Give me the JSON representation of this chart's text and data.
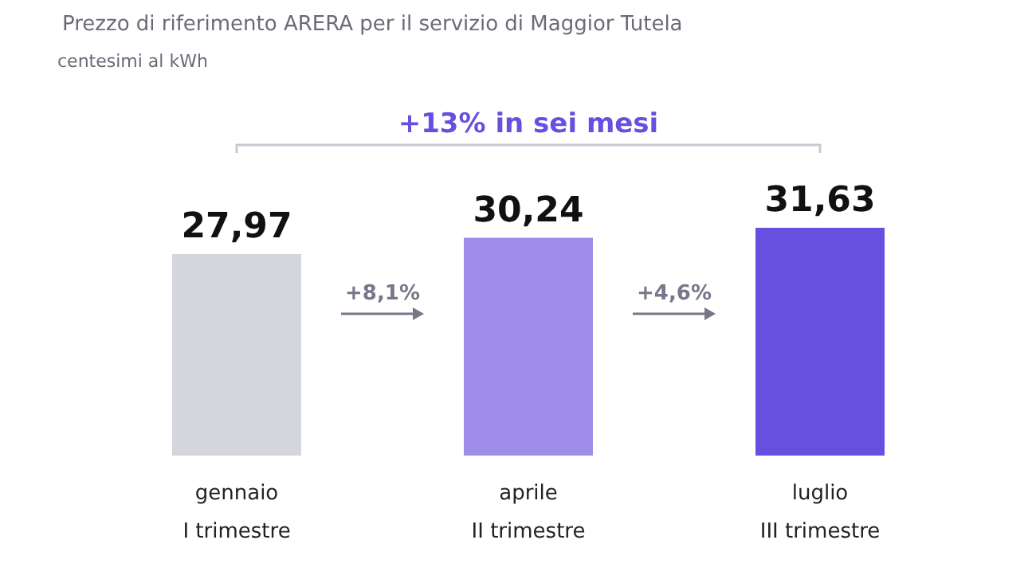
{
  "chart_data": {
    "type": "bar",
    "subtitle": "Prezzo di riferimento ARERA per il servizio di Maggior Tutela",
    "categories": [
      "gennaio\nI trimestre",
      "aprile\nII trimestre",
      "luglio\nIII trimestre"
    ],
    "values": [
      27.97,
      30.24,
      31.63
    ],
    "value_labels": [
      "27,97",
      "30,24",
      "31,63"
    ],
    "colors": [
      "#d5d5dd",
      "#9f8dea",
      "#6750e0"
    ],
    "annotations": [
      "centesimi al kWh",
      "+8,1%",
      "+4,6%",
      "+13% in sei mesi"
    ]
  }
}
